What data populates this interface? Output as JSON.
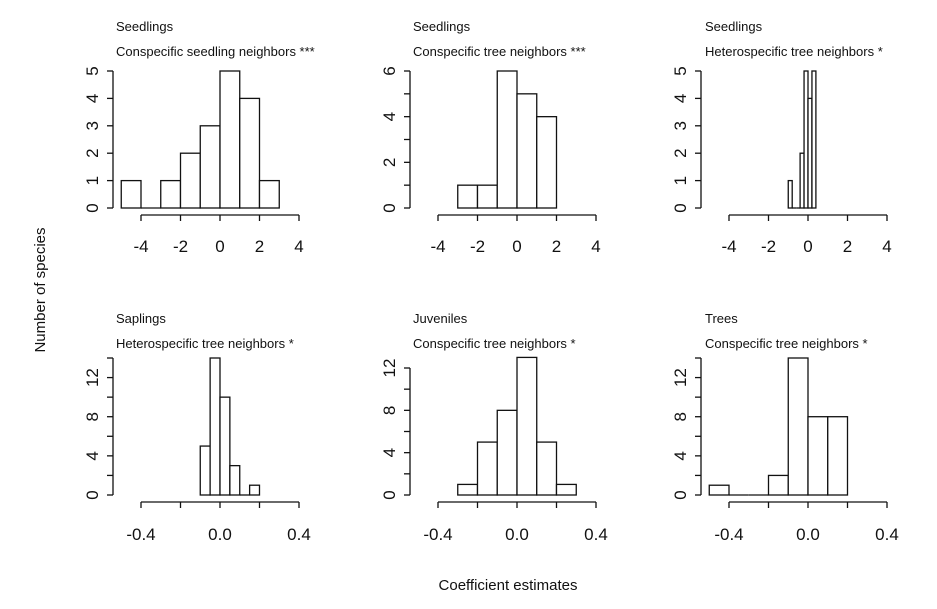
{
  "figure": {
    "ylabel": "Number of species",
    "xlabel": "Coefficient estimates"
  },
  "chart_data": [
    {
      "type": "bar",
      "subtype": "histogram",
      "title": "Seedlings",
      "subtitle": "Conspecific seedling neighbors ***",
      "bin_edges": [
        -5,
        -4,
        -3,
        -2,
        -1,
        0,
        1,
        2,
        3
      ],
      "counts": [
        1,
        0,
        1,
        2,
        3,
        5,
        4,
        1
      ],
      "xlim": [
        -4,
        4
      ],
      "xticks": [
        -4,
        -2,
        0,
        2,
        4
      ],
      "xtick_labels": [
        "-4",
        "-2",
        "0",
        "2",
        "4"
      ],
      "ylim": [
        0,
        5
      ],
      "yticks": [
        0,
        1,
        2,
        3,
        4,
        5
      ],
      "ytick_labels": [
        "0",
        "1",
        "2",
        "3",
        "4",
        "5"
      ],
      "yminor": [],
      "xlabel": "",
      "ylabel": ""
    },
    {
      "type": "bar",
      "subtype": "histogram",
      "title": "Seedlings",
      "subtitle": "Conspecific tree neighbors ***",
      "bin_edges": [
        -3,
        -2,
        -1,
        0,
        1,
        2
      ],
      "counts": [
        1,
        1,
        6,
        5,
        4
      ],
      "xlim": [
        -4,
        4
      ],
      "xticks": [
        -4,
        -2,
        0,
        2,
        4
      ],
      "xtick_labels": [
        "-4",
        "-2",
        "0",
        "2",
        "4"
      ],
      "ylim": [
        0,
        6
      ],
      "yticks": [
        0,
        2,
        4,
        6
      ],
      "ytick_labels": [
        "0",
        "2",
        "4",
        "6"
      ],
      "yminor": [
        1,
        3,
        5
      ],
      "xlabel": "",
      "ylabel": ""
    },
    {
      "type": "bar",
      "subtype": "histogram",
      "title": "Seedlings",
      "subtitle": "Heterospecific tree neighbors *",
      "bin_edges": [
        -1.0,
        -0.8,
        -0.6,
        -0.4,
        -0.2,
        0.0,
        0.2,
        0.4
      ],
      "counts": [
        1,
        0,
        0,
        2,
        5,
        4,
        5
      ],
      "xlim": [
        -4,
        4
      ],
      "xticks": [
        -4,
        -2,
        0,
        2,
        4
      ],
      "xtick_labels": [
        "-4",
        "-2",
        "0",
        "2",
        "4"
      ],
      "ylim": [
        0,
        5
      ],
      "yticks": [
        0,
        1,
        2,
        3,
        4,
        5
      ],
      "ytick_labels": [
        "0",
        "1",
        "2",
        "3",
        "4",
        "5"
      ],
      "yminor": [],
      "xlabel": "",
      "ylabel": ""
    },
    {
      "type": "bar",
      "subtype": "histogram",
      "title": "Saplings",
      "subtitle": "Heterospecific tree neighbors *",
      "bin_edges": [
        -0.1,
        -0.05,
        0.0,
        0.05,
        0.1,
        0.15,
        0.2
      ],
      "counts": [
        5,
        14,
        10,
        3,
        0,
        1
      ],
      "xlim": [
        -0.4,
        0.4
      ],
      "xticks": [
        -0.4,
        -0.2,
        0.0,
        0.2,
        0.4
      ],
      "xtick_labels": [
        "-0.4",
        "",
        "0.0",
        "",
        "0.4"
      ],
      "ylim": [
        0,
        14
      ],
      "yticks": [
        0,
        4,
        8,
        12
      ],
      "ytick_labels": [
        "0",
        "4",
        "8",
        "12"
      ],
      "yminor": [
        2,
        6,
        10,
        14
      ],
      "xlabel": "",
      "ylabel": ""
    },
    {
      "type": "bar",
      "subtype": "histogram",
      "title": "Juveniles",
      "subtitle": "Conspecific tree neighbors *",
      "bin_edges": [
        -0.3,
        -0.2,
        -0.1,
        0.0,
        0.1,
        0.2,
        0.3
      ],
      "counts": [
        1,
        5,
        8,
        13,
        5,
        1
      ],
      "xlim": [
        -0.4,
        0.4
      ],
      "xticks": [
        -0.4,
        -0.2,
        0.0,
        0.2,
        0.4
      ],
      "xtick_labels": [
        "-0.4",
        "",
        "0.0",
        "",
        "0.4"
      ],
      "ylim": [
        0,
        12
      ],
      "yticks": [
        0,
        4,
        8,
        12
      ],
      "ytick_labels": [
        "0",
        "4",
        "8",
        "12"
      ],
      "yminor": [
        2,
        6,
        10
      ],
      "ymax_data": 13,
      "xlabel": "",
      "ylabel": ""
    },
    {
      "type": "bar",
      "subtype": "histogram",
      "title": "Trees",
      "subtitle": "Conspecific tree neighbors *",
      "bin_edges": [
        -0.5,
        -0.4,
        -0.3,
        -0.2,
        -0.1,
        0.0,
        0.1,
        0.2
      ],
      "counts": [
        1,
        0,
        0,
        2,
        14,
        8,
        8
      ],
      "xlim": [
        -0.4,
        0.4
      ],
      "xticks": [
        -0.4,
        -0.2,
        0.0,
        0.2,
        0.4
      ],
      "xtick_labels": [
        "-0.4",
        "",
        "0.0",
        "",
        "0.4"
      ],
      "ylim": [
        0,
        14
      ],
      "yticks": [
        0,
        4,
        8,
        12
      ],
      "ytick_labels": [
        "0",
        "4",
        "8",
        "12"
      ],
      "yminor": [
        2,
        6,
        10,
        14
      ],
      "xlabel": "",
      "ylabel": ""
    }
  ]
}
